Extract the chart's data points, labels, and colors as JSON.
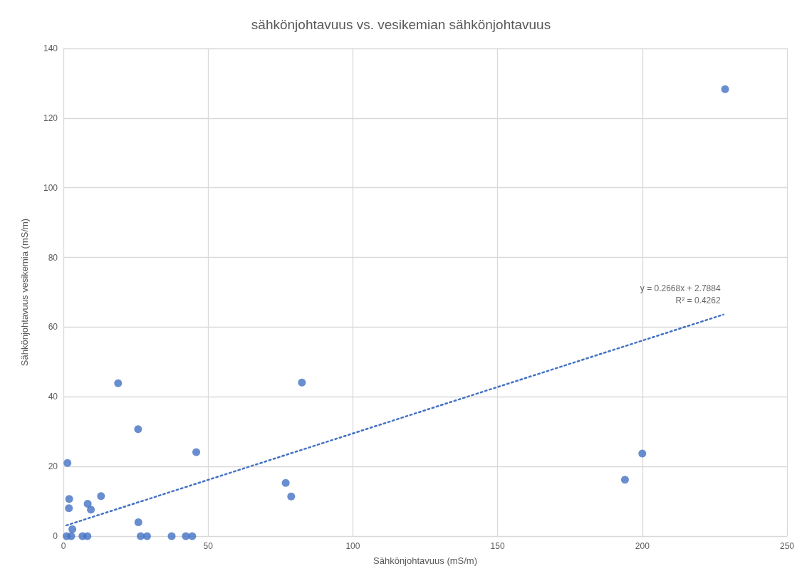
{
  "chart_data": {
    "type": "scatter",
    "title": "sähkönjohtavuus vs. vesikemian sähkönjohtavuus",
    "xlabel": "Sähkönjohtavuus (mS/m)",
    "ylabel": "Sähkönjohtavuus vesikemia (mS/m)",
    "xlim": [
      0,
      250
    ],
    "xticks": [
      0,
      50,
      100,
      150,
      200,
      250
    ],
    "ylim": [
      0,
      140
    ],
    "yticks": [
      0,
      20,
      40,
      60,
      80,
      100,
      120,
      140
    ],
    "grid": true,
    "marker": "circle",
    "series": [
      {
        "color": "#4472c4",
        "x": [
          1.4,
          2.0,
          1.9,
          3.1,
          1.1,
          2.7,
          6.6,
          8.3,
          8.4,
          9.5,
          13.0,
          18.9,
          25.8,
          25.9,
          26.7,
          28.9,
          37.4,
          42.3,
          44.5,
          45.9,
          76.8,
          78.7,
          82.4,
          194,
          200,
          228.6
        ],
        "values": [
          21.0,
          10.7,
          8.0,
          2.0,
          0,
          0,
          0,
          0,
          9.3,
          7.6,
          11.5,
          43.9,
          30.7,
          4.0,
          0,
          0,
          0,
          0,
          0,
          24.1,
          15.3,
          11.4,
          44.1,
          16.2,
          23.7,
          128.3
        ]
      },
      {
        "type": "line",
        "color": "#4472c4",
        "marker": "none",
        "line_style": "dotted",
        "x": [
          1,
          228
        ],
        "values": [
          3.1,
          63.6
        ]
      }
    ],
    "annotations": [
      {
        "text": "y = 0.2668x + 2.7884\nR² = 0.4262",
        "x": 228,
        "y": 63.6
      }
    ]
  }
}
